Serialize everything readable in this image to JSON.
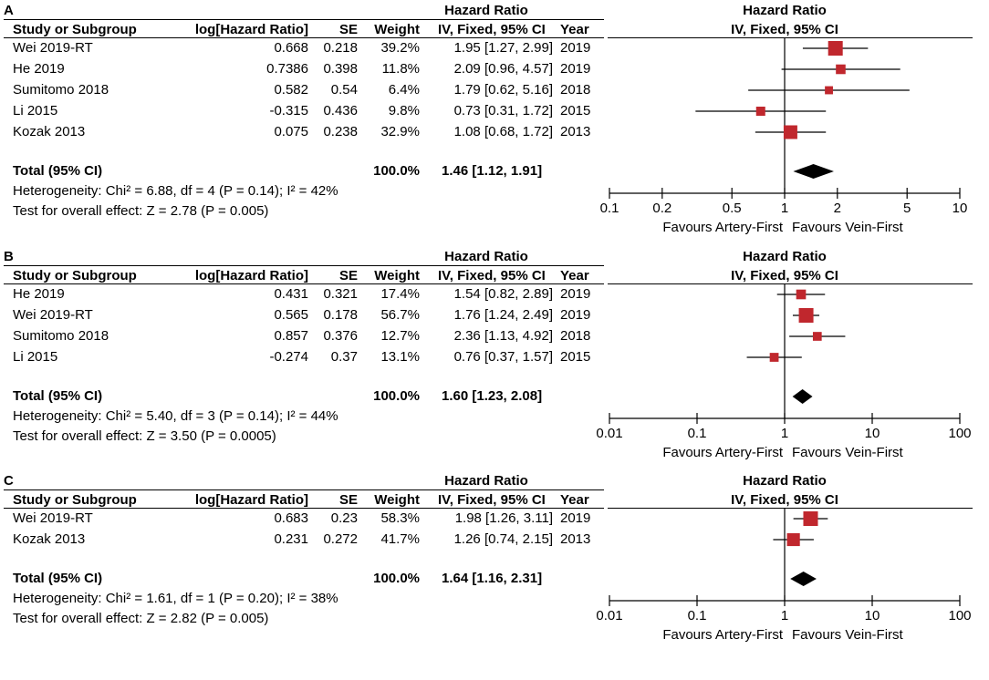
{
  "column_headers": {
    "study": "Study or Subgroup",
    "log": "log[Hazard Ratio]",
    "se": "SE",
    "weight": "Weight",
    "hr_top": "Hazard Ratio",
    "hr_sub": "IV, Fixed, 95% CI",
    "year": "Year",
    "plot_top": "Hazard Ratio",
    "plot_sub": "IV, Fixed, 95% CI"
  },
  "colors": {
    "box": "#c0272d",
    "diamond": "#000000"
  },
  "panels": [
    {
      "label": "A",
      "studies": [
        {
          "name": "Wei 2019-RT",
          "log": "0.668",
          "se": "0.218",
          "weight": "39.2%",
          "ci": "1.95 [1.27, 2.99]",
          "year": "2019"
        },
        {
          "name": "He 2019",
          "log": "0.7386",
          "se": "0.398",
          "weight": "11.8%",
          "ci": "2.09 [0.96, 4.57]",
          "year": "2019"
        },
        {
          "name": "Sumitomo 2018",
          "log": "0.582",
          "se": "0.54",
          "weight": "6.4%",
          "ci": "1.79 [0.62, 5.16]",
          "year": "2018"
        },
        {
          "name": "Li 2015",
          "log": "-0.315",
          "se": "0.436",
          "weight": "9.8%",
          "ci": "0.73 [0.31, 1.72]",
          "year": "2015"
        },
        {
          "name": "Kozak 2013",
          "log": "0.075",
          "se": "0.238",
          "weight": "32.9%",
          "ci": "1.08 [0.68, 1.72]",
          "year": "2013"
        }
      ],
      "total": {
        "label": "Total (95% CI)",
        "weight": "100.0%",
        "ci": "1.46 [1.12, 1.91]"
      },
      "heterogeneity": "Heterogeneity: Chi² = 6.88, df = 4 (P = 0.14); I² = 42%",
      "overall": "Test for overall effect: Z = 2.78 (P = 0.005)",
      "favours_left": "Favours Artery-First",
      "favours_right": "Favours Vein-First"
    },
    {
      "label": "B",
      "studies": [
        {
          "name": "He 2019",
          "log": "0.431",
          "se": "0.321",
          "weight": "17.4%",
          "ci": "1.54 [0.82, 2.89]",
          "year": "2019"
        },
        {
          "name": "Wei 2019-RT",
          "log": "0.565",
          "se": "0.178",
          "weight": "56.7%",
          "ci": "1.76 [1.24, 2.49]",
          "year": "2019"
        },
        {
          "name": "Sumitomo 2018",
          "log": "0.857",
          "se": "0.376",
          "weight": "12.7%",
          "ci": "2.36 [1.13, 4.92]",
          "year": "2018"
        },
        {
          "name": "Li 2015",
          "log": "-0.274",
          "se": "0.37",
          "weight": "13.1%",
          "ci": "0.76 [0.37, 1.57]",
          "year": "2015"
        }
      ],
      "total": {
        "label": "Total (95% CI)",
        "weight": "100.0%",
        "ci": "1.60 [1.23, 2.08]"
      },
      "heterogeneity": "Heterogeneity: Chi² = 5.40, df = 3 (P = 0.14); I² = 44%",
      "overall": "Test for overall effect: Z = 3.50 (P = 0.0005)",
      "favours_left": "Favours Artery-First",
      "favours_right": "Favours Vein-First"
    },
    {
      "label": "C",
      "studies": [
        {
          "name": "Wei 2019-RT",
          "log": "0.683",
          "se": "0.23",
          "weight": "58.3%",
          "ci": "1.98 [1.26, 3.11]",
          "year": "2019"
        },
        {
          "name": "Kozak 2013",
          "log": "0.231",
          "se": "0.272",
          "weight": "41.7%",
          "ci": "1.26 [0.74, 2.15]",
          "year": "2013"
        }
      ],
      "total": {
        "label": "Total (95% CI)",
        "weight": "100.0%",
        "ci": "1.64 [1.16, 2.31]"
      },
      "heterogeneity": "Heterogeneity: Chi² = 1.61, df = 1 (P = 0.20); I² = 38%",
      "overall": "Test for overall effect: Z = 2.82 (P = 0.005)",
      "favours_left": "Favours Artery-First",
      "favours_right": "Favours Vein-First"
    }
  ],
  "chart_data": [
    {
      "type": "forest",
      "title": "A",
      "x_scale": "log",
      "xlim": [
        0.1,
        10
      ],
      "ticks": [
        0.1,
        0.2,
        0.5,
        1,
        2,
        5,
        10
      ],
      "tick_labels": [
        "0.1",
        "0.2",
        "0.5",
        "1",
        "2",
        "5",
        "10"
      ],
      "reference_line": 1,
      "studies": [
        {
          "hr": 1.95,
          "lo": 1.27,
          "hi": 2.99,
          "weight": 39.2
        },
        {
          "hr": 2.09,
          "lo": 0.96,
          "hi": 4.57,
          "weight": 11.8
        },
        {
          "hr": 1.79,
          "lo": 0.62,
          "hi": 5.16,
          "weight": 6.4
        },
        {
          "hr": 0.73,
          "lo": 0.31,
          "hi": 1.72,
          "weight": 9.8
        },
        {
          "hr": 1.08,
          "lo": 0.68,
          "hi": 1.72,
          "weight": 32.9
        }
      ],
      "pooled": {
        "hr": 1.46,
        "lo": 1.12,
        "hi": 1.91
      },
      "xlabel_left": "Favours Artery-First",
      "xlabel_right": "Favours Vein-First"
    },
    {
      "type": "forest",
      "title": "B",
      "x_scale": "log",
      "xlim": [
        0.01,
        100
      ],
      "ticks": [
        0.01,
        0.1,
        1,
        10,
        100
      ],
      "tick_labels": [
        "0.01",
        "0.1",
        "1",
        "10",
        "100"
      ],
      "reference_line": 1,
      "studies": [
        {
          "hr": 1.54,
          "lo": 0.82,
          "hi": 2.89,
          "weight": 17.4
        },
        {
          "hr": 1.76,
          "lo": 1.24,
          "hi": 2.49,
          "weight": 56.7
        },
        {
          "hr": 2.36,
          "lo": 1.13,
          "hi": 4.92,
          "weight": 12.7
        },
        {
          "hr": 0.76,
          "lo": 0.37,
          "hi": 1.57,
          "weight": 13.1
        }
      ],
      "pooled": {
        "hr": 1.6,
        "lo": 1.23,
        "hi": 2.08
      },
      "xlabel_left": "Favours Artery-First",
      "xlabel_right": "Favours Vein-First"
    },
    {
      "type": "forest",
      "title": "C",
      "x_scale": "log",
      "xlim": [
        0.01,
        100
      ],
      "ticks": [
        0.01,
        0.1,
        1,
        10,
        100
      ],
      "tick_labels": [
        "0.01",
        "0.1",
        "1",
        "10",
        "100"
      ],
      "reference_line": 1,
      "studies": [
        {
          "hr": 1.98,
          "lo": 1.26,
          "hi": 3.11,
          "weight": 58.3
        },
        {
          "hr": 1.26,
          "lo": 0.74,
          "hi": 2.15,
          "weight": 41.7
        }
      ],
      "pooled": {
        "hr": 1.64,
        "lo": 1.16,
        "hi": 2.31
      },
      "xlabel_left": "Favours Artery-First",
      "xlabel_right": "Favours Vein-First"
    }
  ]
}
